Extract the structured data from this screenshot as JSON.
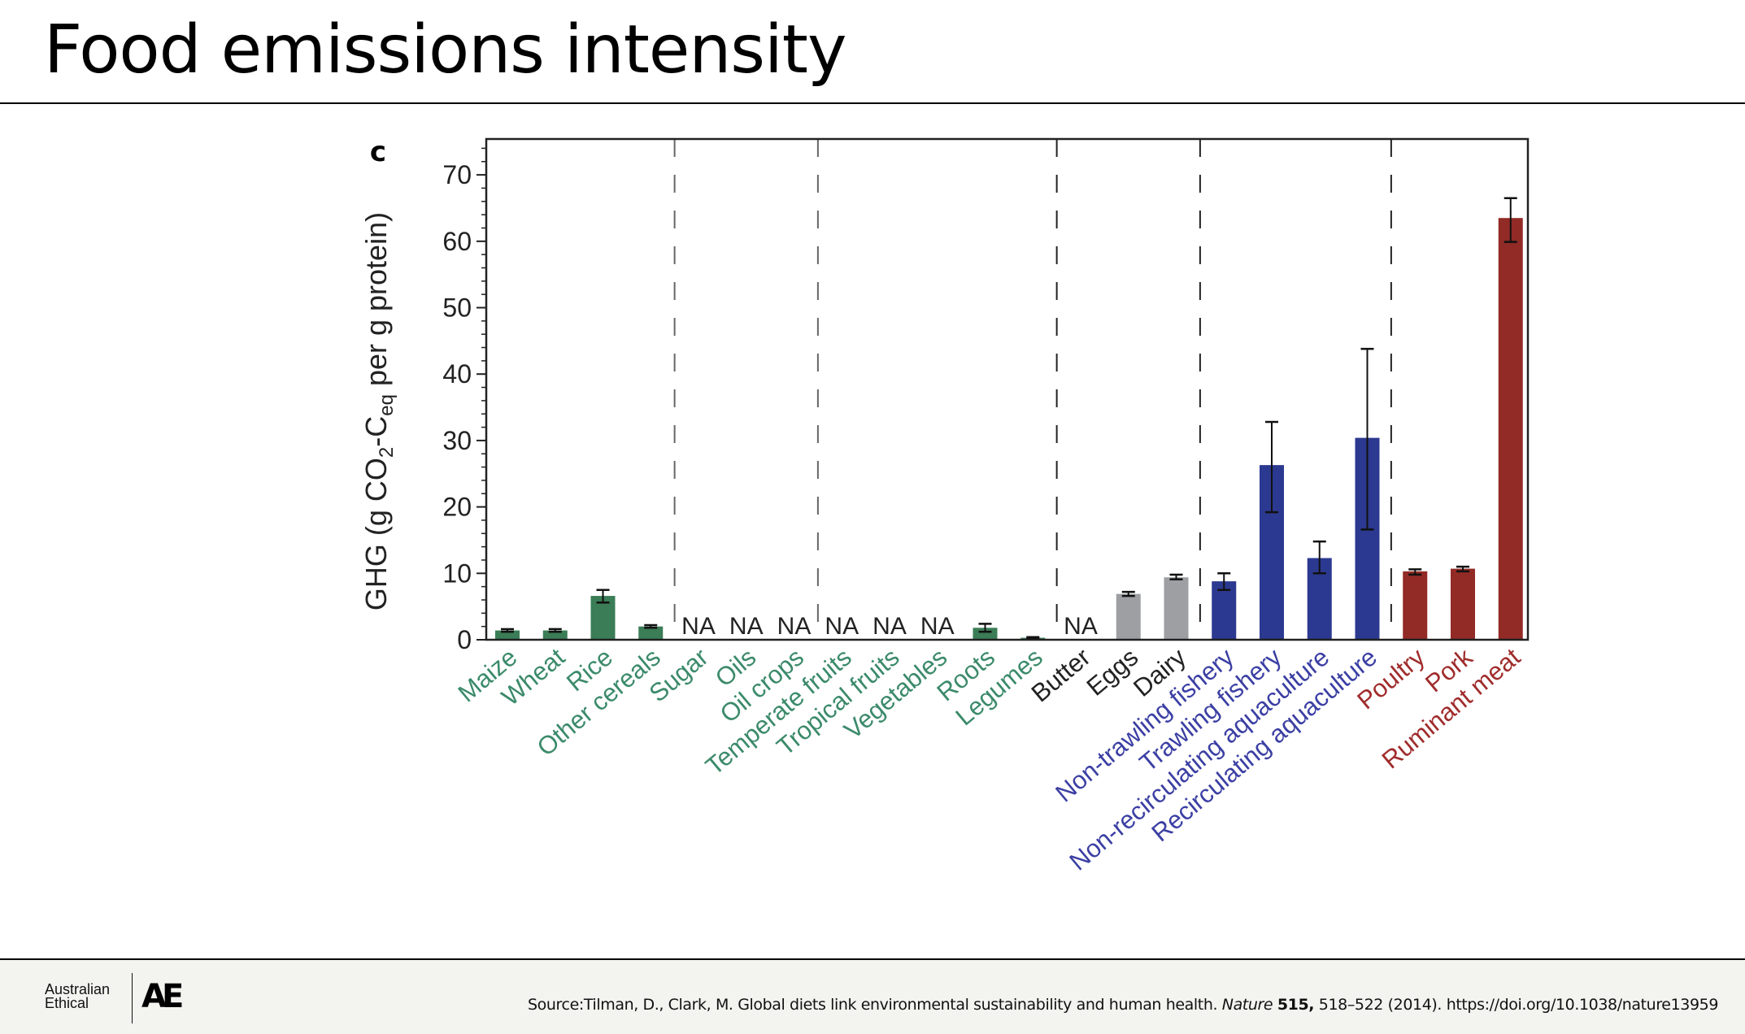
{
  "slide": {
    "title": "Food emissions intensity",
    "footer": {
      "logo_line1": "Australian",
      "logo_line2": "Ethical",
      "logo_mark": "AE",
      "source_prefix": "Source:Tilman, D., Clark, M. Global diets link environmental sustainability and human health. ",
      "source_journal": "Nature",
      "source_volume": "515,",
      "source_rest": " 518–522 (2014). https://doi.org/10.1038/nature13959"
    }
  },
  "chart_data": {
    "type": "bar",
    "panel_label": "c",
    "ylabel_main": "GHG (g CO",
    "ylabel_sub2": "2",
    "ylabel_mid": "-C",
    "ylabel_subeq": "eq",
    "ylabel_end": " per g protein)",
    "ylim": [
      0,
      75
    ],
    "yticks": [
      0,
      10,
      20,
      30,
      40,
      50,
      60,
      70
    ],
    "na_label": "NA",
    "colors": {
      "cereal": "#3a7d56",
      "animal": "#9d9fa3",
      "fish": "#2b3990",
      "meat": "#922a26"
    },
    "label_colors": {
      "cereal": "#3b8a6a",
      "animal": "#222222",
      "fish": "#3b3fa3",
      "meat": "#a02c2c"
    },
    "categories": [
      "Maize",
      "Wheat",
      "Rice",
      "Other cereals",
      "Sugar",
      "Oils",
      "Oil crops",
      "Temperate fruits",
      "Tropical fruits",
      "Vegetables",
      "Roots",
      "Legumes",
      "Butter",
      "Eggs",
      "Dairy",
      "Non-trawling fishery",
      "Trawling fishery",
      "Non-recirculating aquaculture",
      "Recirculating aquaculture",
      "Poultry",
      "Pork",
      "Ruminant meat"
    ],
    "groups": [
      "cereal",
      "cereal",
      "cereal",
      "cereal",
      "cereal",
      "cereal",
      "cereal",
      "cereal",
      "cereal",
      "cereal",
      "cereal",
      "cereal",
      "animal",
      "animal",
      "animal",
      "fish",
      "fish",
      "fish",
      "fish",
      "meat",
      "meat",
      "meat"
    ],
    "values": [
      1.4,
      1.4,
      6.6,
      2.0,
      null,
      null,
      null,
      null,
      null,
      null,
      1.8,
      0.3,
      null,
      6.9,
      9.4,
      8.8,
      26.3,
      12.3,
      30.4,
      10.3,
      10.7,
      63.5
    ],
    "err_low": [
      1.2,
      1.2,
      5.6,
      1.8,
      null,
      null,
      null,
      null,
      null,
      null,
      1.2,
      0.2,
      null,
      6.6,
      9.1,
      7.5,
      19.2,
      10.0,
      16.6,
      9.8,
      10.3,
      59.9
    ],
    "err_high": [
      1.6,
      1.6,
      7.5,
      2.2,
      null,
      null,
      null,
      null,
      null,
      null,
      2.4,
      0.4,
      null,
      7.2,
      9.8,
      10.0,
      32.8,
      14.8,
      43.8,
      10.6,
      11.0,
      66.5
    ],
    "group_dividers_after": [
      3,
      6,
      11,
      14,
      18
    ]
  }
}
